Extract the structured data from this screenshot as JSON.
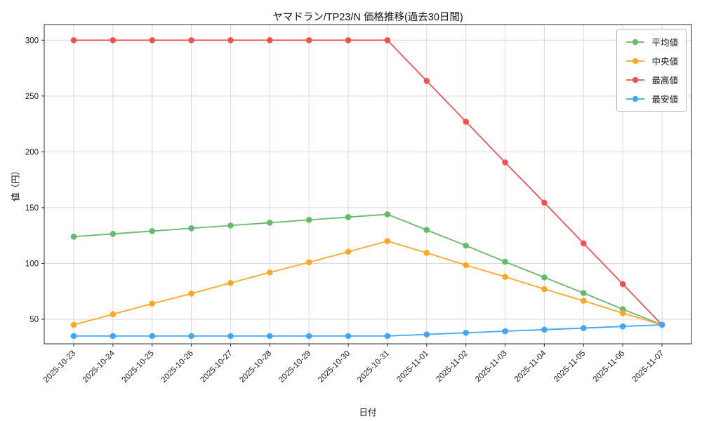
{
  "chart_data": {
    "type": "line",
    "title": "ヤマドラン/TP23/N 価格推移(過去30日間)",
    "xlabel": "日付",
    "ylabel": "値（円）",
    "x": [
      "2025-10-23",
      "2025-10-24",
      "2025-10-25",
      "2025-10-26",
      "2025-10-27",
      "2025-10-28",
      "2025-10-29",
      "2025-10-30",
      "2025-10-31",
      "2025-11-01",
      "2025-11-02",
      "2025-11-03",
      "2025-11-04",
      "2025-11-05",
      "2025-11-06",
      "2025-11-07"
    ],
    "series": [
      {
        "name": "平均値",
        "color": "#66bb6a",
        "values": [
          124,
          126.5,
          129,
          131.5,
          134,
          136.5,
          139,
          141.5,
          144,
          130,
          116,
          101.5,
          87.5,
          73.5,
          59,
          45
        ]
      },
      {
        "name": "中央値",
        "color": "#ffa726",
        "values": [
          45,
          54.5,
          64,
          73,
          82.5,
          92,
          101,
          110.5,
          120,
          109.5,
          98.5,
          88,
          77,
          66.5,
          55.5,
          45
        ]
      },
      {
        "name": "最高値",
        "color": "#ef5350",
        "values": [
          300,
          300,
          300,
          300,
          300,
          300,
          300,
          300,
          300,
          263.5,
          227,
          190.5,
          154.5,
          118,
          81.5,
          45
        ]
      },
      {
        "name": "最安値",
        "color": "#42a5f5",
        "values": [
          35,
          35,
          35,
          35,
          35,
          35,
          35,
          35,
          35,
          36.4,
          37.9,
          39.3,
          40.7,
          42.1,
          43.6,
          45
        ]
      }
    ],
    "yticks": [
      50,
      100,
      150,
      200,
      250,
      300
    ],
    "ylim": [
      28,
      314
    ],
    "grid": true,
    "legend_position": "upper right"
  }
}
